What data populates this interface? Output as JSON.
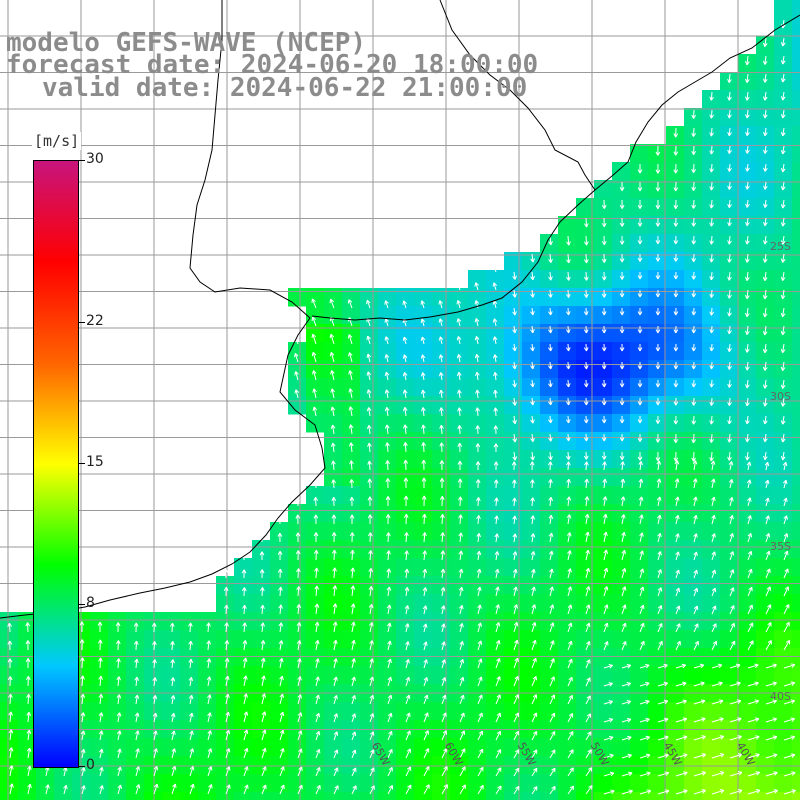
{
  "title": {
    "line1": "modelo GEFS-WAVE (NCEP)",
    "line2": "forecast date: 2024-06-20 18:00:00",
    "line3": "valid date: 2024-06-22 21:00:00"
  },
  "colorbar": {
    "unit": "[m/s]",
    "labels": [
      {
        "text": "30",
        "value": 30
      },
      {
        "text": "22",
        "value": 22
      },
      {
        "text": "15",
        "value": 15
      },
      {
        "text": "8",
        "value": 8
      },
      {
        "text": "0",
        "value": 0
      }
    ],
    "range": [
      0,
      30
    ],
    "colors": [
      "#0000ff",
      "#00c8ff",
      "#00ff00",
      "#ffff00",
      "#ff6400",
      "#ff0000",
      "#c8147d"
    ]
  },
  "longitude_labels": [
    "65W",
    "60W",
    "55W",
    "50W",
    "45W",
    "40W"
  ],
  "latitude_labels": [
    "25S",
    "30S",
    "35S",
    "40S"
  ],
  "colors": {
    "land": "#ffffff",
    "grid": "#9a9a9a",
    "coast": "#000000",
    "arrows": "#ffffff",
    "title": "#8c8c8c"
  }
}
